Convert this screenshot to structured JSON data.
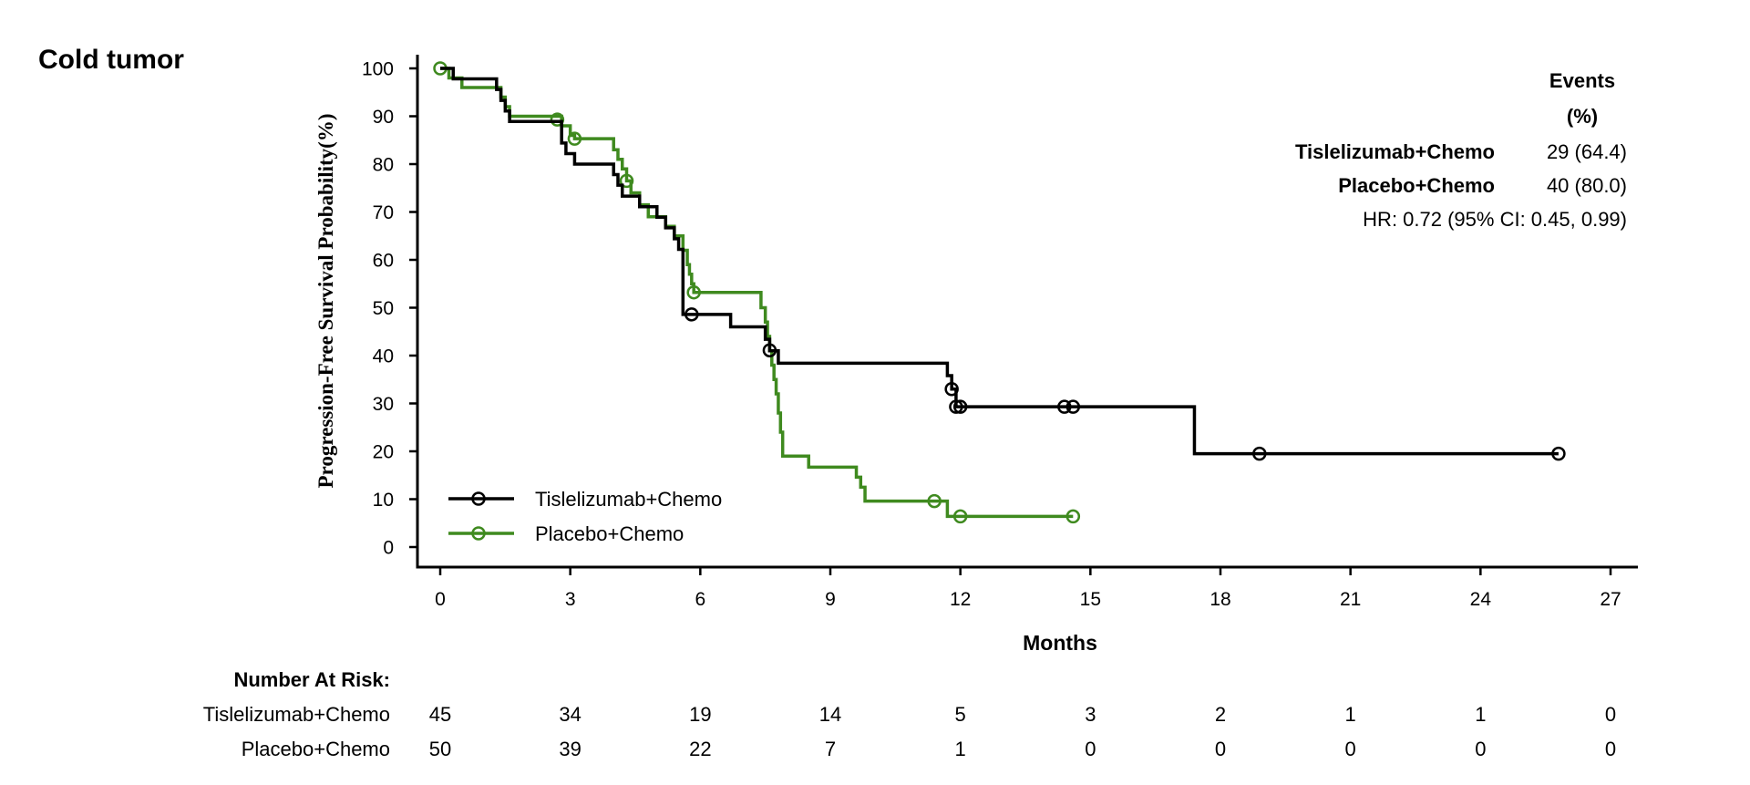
{
  "panel_title": "Cold tumor",
  "colors": {
    "treatment": "#000000",
    "placebo": "#3f8a1f"
  },
  "events_table": {
    "header_line1": "Events",
    "header_line2": "(%)",
    "rows": [
      {
        "name": "Tislelizumab+Chemo",
        "value": "29 (64.4)"
      },
      {
        "name": "Placebo+Chemo",
        "value": "40 (80.0)"
      }
    ],
    "hr": "HR: 0.72 (95% CI: 0.45, 0.99)"
  },
  "risk_table": {
    "title": "Number At Risk:",
    "rows": [
      {
        "name": "Tislelizumab+Chemo",
        "values": [
          "45",
          "34",
          "19",
          "14",
          "5",
          "3",
          "2",
          "1",
          "1",
          "0"
        ]
      },
      {
        "name": "Placebo+Chemo",
        "values": [
          "50",
          "39",
          "22",
          "7",
          "1",
          "0",
          "0",
          "0",
          "0",
          "0"
        ]
      }
    ]
  },
  "chart_data": {
    "type": "line",
    "subtype": "kaplan-meier step",
    "title": "Cold tumor",
    "xlabel": "Months",
    "ylabel": "Progression-Free Survival Probability(%)",
    "xlim": [
      0,
      27
    ],
    "ylim": [
      0,
      100
    ],
    "xticks": [
      0,
      3,
      6,
      9,
      12,
      15,
      18,
      21,
      24,
      27
    ],
    "yticks": [
      0,
      10,
      20,
      30,
      40,
      50,
      60,
      70,
      80,
      90,
      100
    ],
    "legend_position": "bottom-left",
    "series": [
      {
        "name": "Tislelizumab+Chemo",
        "color": "#000000",
        "steps": [
          [
            0,
            100
          ],
          [
            0.3,
            97.8
          ],
          [
            1.3,
            95.6
          ],
          [
            1.4,
            93.3
          ],
          [
            1.5,
            91.1
          ],
          [
            1.6,
            88.9
          ],
          [
            2.8,
            86.7
          ],
          [
            2.8,
            84.4
          ],
          [
            2.9,
            82.2
          ],
          [
            3.1,
            80.0
          ],
          [
            4.0,
            77.8
          ],
          [
            4.1,
            75.6
          ],
          [
            4.2,
            73.3
          ],
          [
            4.6,
            71.1
          ],
          [
            5.0,
            68.9
          ],
          [
            5.2,
            66.7
          ],
          [
            5.4,
            64.4
          ],
          [
            5.5,
            62.2
          ],
          [
            5.6,
            48.6
          ],
          [
            6.7,
            46.0
          ],
          [
            7.5,
            43.4
          ],
          [
            7.6,
            41.0
          ],
          [
            7.8,
            38.4
          ],
          [
            11.7,
            35.8
          ],
          [
            11.8,
            33.0
          ],
          [
            11.9,
            29.3
          ],
          [
            17.4,
            19.5
          ]
        ],
        "end_x": 25.8,
        "censored": [
          [
            5.8,
            48.6
          ],
          [
            7.6,
            41.1
          ],
          [
            11.8,
            33.0
          ],
          [
            11.9,
            29.3
          ],
          [
            12.0,
            29.3
          ],
          [
            14.4,
            29.3
          ],
          [
            14.6,
            29.3
          ],
          [
            18.9,
            19.5
          ],
          [
            25.8,
            19.5
          ]
        ]
      },
      {
        "name": "Placebo+Chemo",
        "color": "#3f8a1f",
        "steps": [
          [
            0,
            100
          ],
          [
            0.2,
            98
          ],
          [
            0.5,
            96
          ],
          [
            1.4,
            94
          ],
          [
            1.5,
            92
          ],
          [
            1.6,
            90
          ],
          [
            2.8,
            88
          ],
          [
            3.0,
            86
          ],
          [
            3.1,
            85.3
          ],
          [
            4.0,
            83
          ],
          [
            4.1,
            81
          ],
          [
            4.2,
            79
          ],
          [
            4.3,
            76.5
          ],
          [
            4.4,
            74
          ],
          [
            4.6,
            71.5
          ],
          [
            4.8,
            69
          ],
          [
            5.2,
            67
          ],
          [
            5.4,
            65
          ],
          [
            5.6,
            62
          ],
          [
            5.7,
            59
          ],
          [
            5.75,
            57
          ],
          [
            5.8,
            55
          ],
          [
            5.85,
            53.2
          ],
          [
            7.4,
            50
          ],
          [
            7.5,
            47
          ],
          [
            7.55,
            44
          ],
          [
            7.6,
            41
          ],
          [
            7.65,
            38
          ],
          [
            7.7,
            35
          ],
          [
            7.75,
            32
          ],
          [
            7.8,
            28
          ],
          [
            7.85,
            24
          ],
          [
            7.9,
            19
          ],
          [
            8.5,
            16.7
          ],
          [
            9.6,
            14.6
          ],
          [
            9.7,
            12.5
          ],
          [
            9.8,
            9.6
          ],
          [
            11.7,
            6.4
          ]
        ],
        "end_x": 14.6,
        "censored": [
          [
            0.0,
            100
          ],
          [
            2.7,
            89.3
          ],
          [
            3.1,
            85.3
          ],
          [
            4.3,
            76.5
          ],
          [
            5.85,
            53.2
          ],
          [
            11.4,
            9.6
          ],
          [
            12.0,
            6.4
          ],
          [
            14.6,
            6.4
          ]
        ]
      }
    ]
  }
}
